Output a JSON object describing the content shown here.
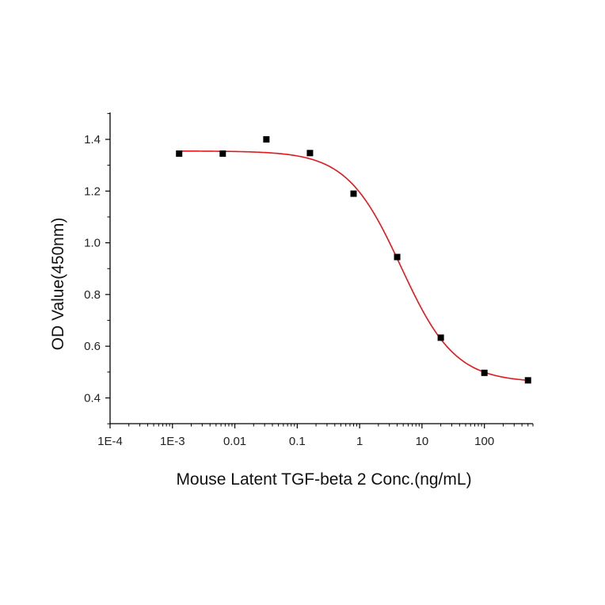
{
  "chart_data": {
    "type": "scatter",
    "title": "",
    "xlabel": "Mouse Latent TGF-beta 2 Conc.(ng/mL)",
    "ylabel": "OD Value(450nm)",
    "x_scale": "log",
    "xlim": [
      0.0001,
      600
    ],
    "ylim": [
      0.3,
      1.5
    ],
    "x_ticks": [
      {
        "value": 0.0001,
        "label": "1E-4"
      },
      {
        "value": 0.001,
        "label": "1E-3"
      },
      {
        "value": 0.01,
        "label": "0.01"
      },
      {
        "value": 0.1,
        "label": "0.1"
      },
      {
        "value": 1,
        "label": "1"
      },
      {
        "value": 10,
        "label": "10"
      },
      {
        "value": 100,
        "label": "100"
      }
    ],
    "y_ticks": [
      {
        "value": 0.4,
        "label": "0.4"
      },
      {
        "value": 0.6,
        "label": "0.6"
      },
      {
        "value": 0.8,
        "label": "0.8"
      },
      {
        "value": 1.0,
        "label": "1.0"
      },
      {
        "value": 1.2,
        "label": "1.2"
      },
      {
        "value": 1.4,
        "label": "1.4"
      }
    ],
    "grid": false,
    "series": [
      {
        "kind": "points",
        "color": "#000000",
        "marker": "square",
        "points": [
          {
            "x": 0.00128,
            "y": 1.345
          },
          {
            "x": 0.0064,
            "y": 1.345
          },
          {
            "x": 0.032,
            "y": 1.4
          },
          {
            "x": 0.16,
            "y": 1.347
          },
          {
            "x": 0.8,
            "y": 1.19
          },
          {
            "x": 4,
            "y": 0.945
          },
          {
            "x": 20,
            "y": 0.633
          },
          {
            "x": 100,
            "y": 0.497
          },
          {
            "x": 500,
            "y": 0.468
          }
        ]
      },
      {
        "kind": "fit",
        "color": "#e0191f",
        "model": "4PL",
        "top": 1.355,
        "bottom": 0.46,
        "ec50": 4.6,
        "hill": 1.0
      }
    ]
  }
}
